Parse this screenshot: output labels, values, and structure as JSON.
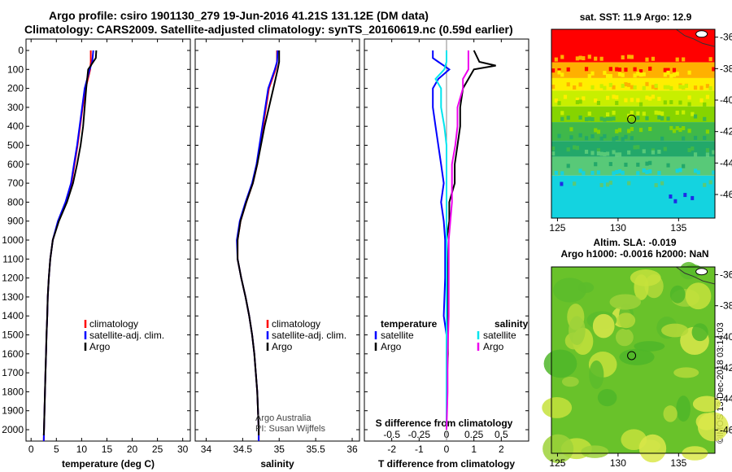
{
  "header": {
    "line1": "Argo profile: csiro 1901130_279 19-Jun-2016 41.21S 131.12E (DM data)",
    "line2": "Climatology: CARS2009. Satellite-adjusted climatology: synTS_20160619.nc (0.59d earlier)"
  },
  "side_label": "©IMOS 13-Dec-2018 03:14:03",
  "colors": {
    "climatology": "#ff0000",
    "satellite": "#0000ff",
    "argo": "#000000",
    "s_satellite": "#00e5ee",
    "s_argo": "#ee00ee"
  },
  "chart_data": [
    {
      "type": "line",
      "title": "",
      "xlabel": "temperature (deg C)",
      "ylabel": "",
      "xlim": [
        -1,
        31.5
      ],
      "ylim": [
        2060,
        0
      ],
      "xticks": [
        0,
        5,
        10,
        15,
        20,
        25,
        30
      ],
      "yticks": [
        0,
        100,
        200,
        300,
        400,
        500,
        600,
        700,
        800,
        900,
        1000,
        1100,
        1200,
        1300,
        1400,
        1500,
        1600,
        1700,
        1800,
        1900,
        2000
      ],
      "legend": [
        "climatology",
        "satellite-adj. clim.",
        "Argo"
      ],
      "series": [
        {
          "name": "climatology",
          "depth": [
            0,
            60,
            100,
            200,
            300,
            400,
            500,
            600,
            700,
            800,
            900,
            1000,
            1100,
            1200,
            1300,
            1400,
            1500,
            1600,
            1700,
            1800,
            1900,
            2000,
            2060
          ],
          "values": [
            11.8,
            11.8,
            11.7,
            10.8,
            10.2,
            9.7,
            9.2,
            8.6,
            8.0,
            6.9,
            5.4,
            4.3,
            3.8,
            3.5,
            3.3,
            3.2,
            3.05,
            2.95,
            2.85,
            2.75,
            2.65,
            2.55,
            2.5
          ]
        },
        {
          "name": "satellite-adj. clim.",
          "depth": [
            0,
            60,
            100,
            200,
            300,
            400,
            500,
            600,
            700,
            800,
            900,
            1000,
            1100,
            1200,
            1300,
            1400,
            1500,
            1600,
            1700,
            1800,
            1900,
            2000,
            2060
          ],
          "values": [
            12.3,
            12.1,
            11.6,
            10.6,
            10.1,
            9.6,
            9.1,
            8.5,
            7.9,
            6.8,
            5.3,
            4.3,
            3.8,
            3.5,
            3.3,
            3.2,
            3.05,
            2.95,
            2.85,
            2.75,
            2.65,
            2.55,
            2.5
          ]
        },
        {
          "name": "Argo",
          "depth": [
            0,
            40,
            60,
            100,
            200,
            300,
            400,
            500,
            600,
            700,
            800,
            900,
            1000,
            1100,
            1200,
            1300,
            1400,
            1500,
            1600,
            1700,
            1800,
            1900,
            2000,
            2030
          ],
          "values": [
            12.9,
            12.8,
            12.3,
            11.3,
            10.9,
            10.6,
            10.3,
            9.8,
            9.1,
            8.3,
            7.1,
            5.5,
            4.3,
            3.8,
            3.5,
            3.3,
            3.2,
            3.05,
            2.95,
            2.85,
            2.75,
            2.65,
            2.55,
            2.5
          ]
        }
      ]
    },
    {
      "type": "line",
      "title": "",
      "xlabel": "salinity",
      "ylabel": "",
      "xlim": [
        33.85,
        36.1
      ],
      "ylim": [
        2060,
        0
      ],
      "xticks": [
        34,
        34.5,
        35,
        35.5,
        36
      ],
      "legend": [
        "climatology",
        "satellite-adj. clim.",
        "Argo"
      ],
      "annotations": [
        "Argo Australia",
        "PI: Susan Wijffels"
      ],
      "series": [
        {
          "name": "climatology",
          "depth": [
            0,
            60,
            100,
            200,
            300,
            400,
            500,
            600,
            700,
            800,
            900,
            1000,
            1100,
            1200,
            1300,
            1400,
            1500,
            1600,
            1700,
            1800,
            1900,
            2000,
            2060
          ],
          "values": [
            34.97,
            34.97,
            34.95,
            34.86,
            34.82,
            34.78,
            34.74,
            34.7,
            34.64,
            34.55,
            34.47,
            34.43,
            34.43,
            34.48,
            34.54,
            34.59,
            34.63,
            34.66,
            34.68,
            34.7,
            34.71,
            34.72,
            34.72
          ]
        },
        {
          "name": "satellite-adj. clim.",
          "depth": [
            0,
            60,
            100,
            200,
            300,
            400,
            500,
            600,
            700,
            800,
            900,
            1000,
            1100,
            1200,
            1300,
            1400,
            1500,
            1600,
            1700,
            1800,
            1900,
            2000,
            2060
          ],
          "values": [
            34.98,
            34.97,
            34.94,
            34.85,
            34.81,
            34.77,
            34.73,
            34.69,
            34.63,
            34.54,
            34.46,
            34.42,
            34.43,
            34.48,
            34.54,
            34.59,
            34.63,
            34.66,
            34.68,
            34.7,
            34.71,
            34.72,
            34.72
          ]
        },
        {
          "name": "Argo",
          "depth": [
            0,
            40,
            60,
            100,
            200,
            300,
            400,
            500,
            600,
            700,
            800,
            900,
            1000,
            1100,
            1200,
            1300,
            1400,
            1500,
            1600,
            1700,
            1800,
            1900,
            2000,
            2030
          ],
          "values": [
            35.0,
            35.0,
            35.0,
            34.98,
            34.92,
            34.86,
            34.8,
            34.75,
            34.7,
            34.64,
            34.55,
            34.47,
            34.43,
            34.43,
            34.48,
            34.54,
            34.59,
            34.63,
            34.66,
            34.68,
            34.7,
            34.71,
            34.72,
            34.72
          ]
        }
      ]
    },
    {
      "type": "line",
      "title": "S difference from climatology",
      "xlabel": "T difference from climatology",
      "ylabel": "",
      "xlim": [
        -3.0,
        3.0
      ],
      "ylim": [
        2060,
        0
      ],
      "xticks": [
        -2,
        -1,
        0,
        1,
        2
      ],
      "xticks_top": [
        "-0.5",
        "-0.25",
        "0",
        "0.25",
        "0.5"
      ],
      "legend": {
        "temperature": [
          "satellite",
          "Argo"
        ],
        "salinity": [
          "satellite",
          "Argo"
        ]
      },
      "series": [
        {
          "name": "temperature satellite",
          "depth": [
            0,
            40,
            60,
            80,
            100,
            150,
            200,
            300,
            400,
            500,
            600,
            700,
            800,
            900,
            1000,
            1200,
            1400,
            1500,
            1600,
            1800,
            2000
          ],
          "values": [
            -0.5,
            -0.5,
            -0.3,
            -0.1,
            0.1,
            -0.3,
            -0.5,
            -0.5,
            -0.4,
            -0.3,
            -0.2,
            -0.1,
            -0.2,
            -0.1,
            -0.05,
            -0.05,
            -0.1,
            0,
            0,
            0,
            0
          ]
        },
        {
          "name": "temperature Argo",
          "depth": [
            0,
            60,
            80,
            100,
            200,
            300,
            400,
            500,
            600,
            700,
            800,
            900,
            1000,
            1200,
            1400,
            1500,
            1600,
            1800,
            2000
          ],
          "values": [
            1.0,
            1.2,
            1.8,
            1.0,
            0.6,
            0.5,
            0.5,
            0.4,
            0.3,
            0.3,
            0.1,
            0.1,
            0,
            0.05,
            0.05,
            0.05,
            0.05,
            0,
            0
          ]
        },
        {
          "name": "salinity satellite",
          "depth": [
            0,
            60,
            100,
            150,
            200,
            300,
            400,
            500,
            600,
            800,
            1000,
            1200,
            1400,
            1600,
            1800,
            2000
          ],
          "values": [
            0.0,
            0.0,
            -0.02,
            -0.1,
            -0.05,
            -0.05,
            -0.02,
            0,
            0,
            0,
            0,
            0,
            0,
            0,
            0,
            0
          ]
        },
        {
          "name": "salinity Argo",
          "depth": [
            0,
            60,
            100,
            150,
            200,
            300,
            400,
            500,
            600,
            800,
            1000,
            1200,
            1400,
            1600,
            1800,
            2000
          ],
          "values": [
            0.2,
            0.2,
            0.2,
            0.15,
            0.15,
            0.1,
            0.1,
            0.08,
            0.05,
            0.05,
            0.02,
            0.02,
            0.02,
            0.01,
            0.01,
            0
          ]
        }
      ]
    },
    {
      "type": "heatmap",
      "title": "sat. SST: 11.9 Argo: 12.9",
      "xlabel": "",
      "ylabel": "",
      "xlim": [
        124.5,
        138
      ],
      "ylim": [
        -47.5,
        -35.5
      ],
      "xticks": [
        125,
        130,
        135
      ],
      "yticks": [
        -36,
        -38,
        -40,
        -42,
        -44,
        -46
      ],
      "marker": {
        "lon": 131.12,
        "lat": -41.21
      },
      "bands": [
        {
          "lat_from": -35.5,
          "lat_to": -37.6,
          "color": "#ff0000"
        },
        {
          "lat_from": -37.6,
          "lat_to": -38.6,
          "color": "#ffb000"
        },
        {
          "lat_from": -38.6,
          "lat_to": -39.4,
          "color": "#ffee00"
        },
        {
          "lat_from": -39.4,
          "lat_to": -40.4,
          "color": "#c8ef00"
        },
        {
          "lat_from": -40.4,
          "lat_to": -41.4,
          "color": "#86d400"
        },
        {
          "lat_from": -41.4,
          "lat_to": -42.6,
          "color": "#3fb84a"
        },
        {
          "lat_from": -42.6,
          "lat_to": -43.6,
          "color": "#23a86a"
        },
        {
          "lat_from": -43.6,
          "lat_to": -44.8,
          "color": "#58c978"
        },
        {
          "lat_from": -44.8,
          "lat_to": -47.5,
          "color": "#14d3e0"
        }
      ]
    },
    {
      "type": "heatmap",
      "title": "Altim. SLA: -0.019",
      "subtitle": "Argo h1000: -0.0016 h2000: NaN",
      "xlabel": "",
      "ylabel": "",
      "xlim": [
        124.5,
        138
      ],
      "ylim": [
        -47.5,
        -35.5
      ],
      "xticks": [
        125,
        130,
        135
      ],
      "yticks": [
        -36,
        -38,
        -40,
        -42,
        -44,
        -46
      ],
      "marker": {
        "lon": 131.12,
        "lat": -41.21
      },
      "base_color": "#69c22a"
    }
  ]
}
